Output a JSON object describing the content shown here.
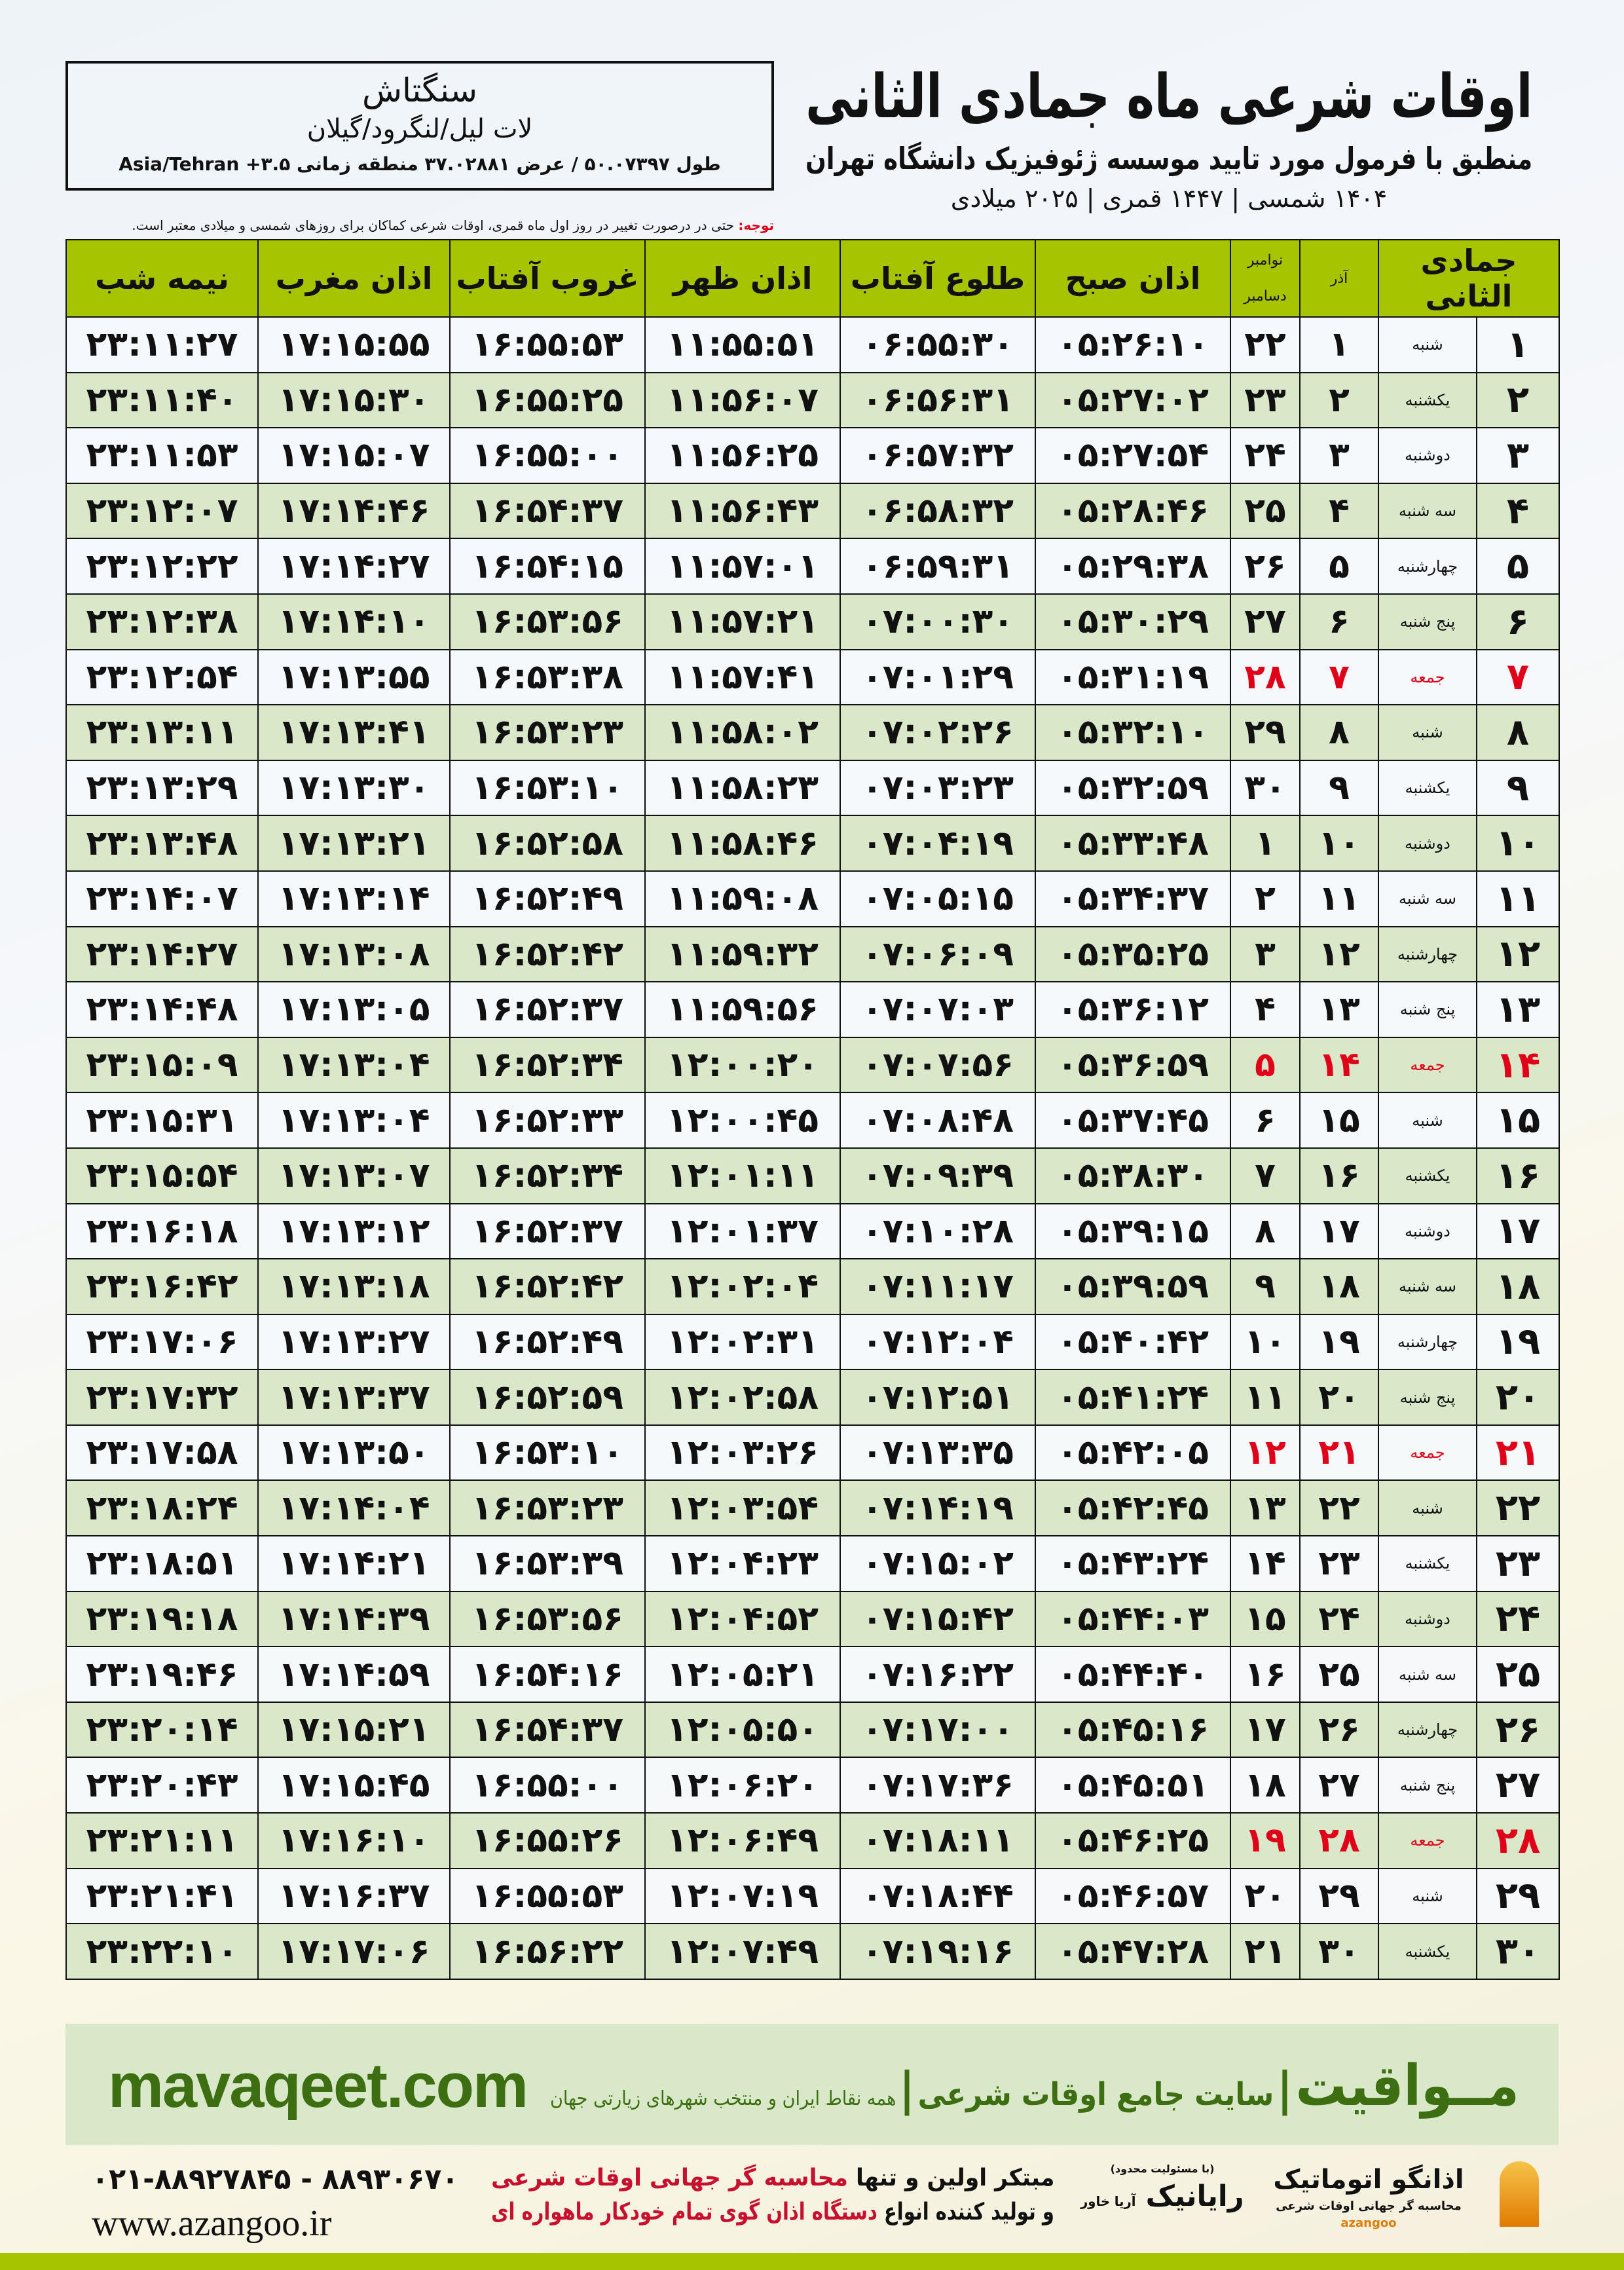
{
  "header": {
    "title": "اوقات شرعی ماه جمادی الثانی",
    "subtitle": "منطبق با فرمول مورد تایید موسسه ژئوفیزیک دانشگاه تهران",
    "dates": "۱۴۰۴ شمسی | ۱۴۴۷ قمری | ۲۰۲۵ میلادی"
  },
  "location": {
    "name": "سنگتاش",
    "region": "لات لیل/لنگرود/گیلان",
    "coords": "طول ۵۰.۰۷۳۹۷ / عرض ۳۷.۰۲۸۸۱ منطقه زمانی ۳.۵+ Asia/Tehran"
  },
  "note": {
    "label": "توجه:",
    "text": " حتی در درصورت تغییر در روز اول ماه قمری، اوقات شرعی کماکان برای روزهای شمسی و میلادی معتبر است."
  },
  "colors": {
    "header": "#a6c400",
    "row_alt": "#d9e8c8",
    "holiday": "#e0001a",
    "brand": "#3d6e12"
  },
  "table": {
    "headers": {
      "hijri": "جمادی الثانی",
      "azar": "آذر",
      "greg_top": "نوامبر",
      "greg_bottom": "دسامبر",
      "fajr": "اذان صبح",
      "sunrise": "طلوع آفتاب",
      "dhuhr": "اذان ظهر",
      "sunset": "غروب آفتاب",
      "maghrib": "اذان مغرب",
      "midnight": "نیمه شب"
    },
    "rows": [
      {
        "day": "۱",
        "weekday": "شنبه",
        "azar": "۱",
        "greg": "۲۲",
        "fajr": "۰۵:۲۶:۱۰",
        "sunrise": "۰۶:۵۵:۳۰",
        "dhuhr": "۱۱:۵۵:۵۱",
        "sunset": "۱۶:۵۵:۵۳",
        "maghrib": "۱۷:۱۵:۵۵",
        "midnight": "۲۳:۱۱:۲۷"
      },
      {
        "day": "۲",
        "weekday": "یکشنبه",
        "azar": "۲",
        "greg": "۲۳",
        "fajr": "۰۵:۲۷:۰۲",
        "sunrise": "۰۶:۵۶:۳۱",
        "dhuhr": "۱۱:۵۶:۰۷",
        "sunset": "۱۶:۵۵:۲۵",
        "maghrib": "۱۷:۱۵:۳۰",
        "midnight": "۲۳:۱۱:۴۰"
      },
      {
        "day": "۳",
        "weekday": "دوشنبه",
        "azar": "۳",
        "greg": "۲۴",
        "fajr": "۰۵:۲۷:۵۴",
        "sunrise": "۰۶:۵۷:۳۲",
        "dhuhr": "۱۱:۵۶:۲۵",
        "sunset": "۱۶:۵۵:۰۰",
        "maghrib": "۱۷:۱۵:۰۷",
        "midnight": "۲۳:۱۱:۵۳"
      },
      {
        "day": "۴",
        "weekday": "سه شنبه",
        "azar": "۴",
        "greg": "۲۵",
        "fajr": "۰۵:۲۸:۴۶",
        "sunrise": "۰۶:۵۸:۳۲",
        "dhuhr": "۱۱:۵۶:۴۳",
        "sunset": "۱۶:۵۴:۳۷",
        "maghrib": "۱۷:۱۴:۴۶",
        "midnight": "۲۳:۱۲:۰۷"
      },
      {
        "day": "۵",
        "weekday": "چهارشنبه",
        "azar": "۵",
        "greg": "۲۶",
        "fajr": "۰۵:۲۹:۳۸",
        "sunrise": "۰۶:۵۹:۳۱",
        "dhuhr": "۱۱:۵۷:۰۱",
        "sunset": "۱۶:۵۴:۱۵",
        "maghrib": "۱۷:۱۴:۲۷",
        "midnight": "۲۳:۱۲:۲۲"
      },
      {
        "day": "۶",
        "weekday": "پنج شنبه",
        "azar": "۶",
        "greg": "۲۷",
        "fajr": "۰۵:۳۰:۲۹",
        "sunrise": "۰۷:۰۰:۳۰",
        "dhuhr": "۱۱:۵۷:۲۱",
        "sunset": "۱۶:۵۳:۵۶",
        "maghrib": "۱۷:۱۴:۱۰",
        "midnight": "۲۳:۱۲:۳۸"
      },
      {
        "day": "۷",
        "weekday": "جمعه",
        "azar": "۷",
        "greg": "۲۸",
        "holiday": true,
        "fajr": "۰۵:۳۱:۱۹",
        "sunrise": "۰۷:۰۱:۲۹",
        "dhuhr": "۱۱:۵۷:۴۱",
        "sunset": "۱۶:۵۳:۳۸",
        "maghrib": "۱۷:۱۳:۵۵",
        "midnight": "۲۳:۱۲:۵۴"
      },
      {
        "day": "۸",
        "weekday": "شنبه",
        "azar": "۸",
        "greg": "۲۹",
        "fajr": "۰۵:۳۲:۱۰",
        "sunrise": "۰۷:۰۲:۲۶",
        "dhuhr": "۱۱:۵۸:۰۲",
        "sunset": "۱۶:۵۳:۲۳",
        "maghrib": "۱۷:۱۳:۴۱",
        "midnight": "۲۳:۱۳:۱۱"
      },
      {
        "day": "۹",
        "weekday": "یکشنبه",
        "azar": "۹",
        "greg": "۳۰",
        "fajr": "۰۵:۳۲:۵۹",
        "sunrise": "۰۷:۰۳:۲۳",
        "dhuhr": "۱۱:۵۸:۲۳",
        "sunset": "۱۶:۵۳:۱۰",
        "maghrib": "۱۷:۱۳:۳۰",
        "midnight": "۲۳:۱۳:۲۹"
      },
      {
        "day": "۱۰",
        "weekday": "دوشنبه",
        "azar": "۱۰",
        "greg": "۱",
        "fajr": "۰۵:۳۳:۴۸",
        "sunrise": "۰۷:۰۴:۱۹",
        "dhuhr": "۱۱:۵۸:۴۶",
        "sunset": "۱۶:۵۲:۵۸",
        "maghrib": "۱۷:۱۳:۲۱",
        "midnight": "۲۳:۱۳:۴۸"
      },
      {
        "day": "۱۱",
        "weekday": "سه شنبه",
        "azar": "۱۱",
        "greg": "۲",
        "fajr": "۰۵:۳۴:۳۷",
        "sunrise": "۰۷:۰۵:۱۵",
        "dhuhr": "۱۱:۵۹:۰۸",
        "sunset": "۱۶:۵۲:۴۹",
        "maghrib": "۱۷:۱۳:۱۴",
        "midnight": "۲۳:۱۴:۰۷"
      },
      {
        "day": "۱۲",
        "weekday": "چهارشنبه",
        "azar": "۱۲",
        "greg": "۳",
        "fajr": "۰۵:۳۵:۲۵",
        "sunrise": "۰۷:۰۶:۰۹",
        "dhuhr": "۱۱:۵۹:۳۲",
        "sunset": "۱۶:۵۲:۴۲",
        "maghrib": "۱۷:۱۳:۰۸",
        "midnight": "۲۳:۱۴:۲۷"
      },
      {
        "day": "۱۳",
        "weekday": "پنج شنبه",
        "azar": "۱۳",
        "greg": "۴",
        "fajr": "۰۵:۳۶:۱۲",
        "sunrise": "۰۷:۰۷:۰۳",
        "dhuhr": "۱۱:۵۹:۵۶",
        "sunset": "۱۶:۵۲:۳۷",
        "maghrib": "۱۷:۱۳:۰۵",
        "midnight": "۲۳:۱۴:۴۸"
      },
      {
        "day": "۱۴",
        "weekday": "جمعه",
        "azar": "۱۴",
        "greg": "۵",
        "holiday": true,
        "fajr": "۰۵:۳۶:۵۹",
        "sunrise": "۰۷:۰۷:۵۶",
        "dhuhr": "۱۲:۰۰:۲۰",
        "sunset": "۱۶:۵۲:۳۴",
        "maghrib": "۱۷:۱۳:۰۴",
        "midnight": "۲۳:۱۵:۰۹"
      },
      {
        "day": "۱۵",
        "weekday": "شنبه",
        "azar": "۱۵",
        "greg": "۶",
        "fajr": "۰۵:۳۷:۴۵",
        "sunrise": "۰۷:۰۸:۴۸",
        "dhuhr": "۱۲:۰۰:۴۵",
        "sunset": "۱۶:۵۲:۳۳",
        "maghrib": "۱۷:۱۳:۰۴",
        "midnight": "۲۳:۱۵:۳۱"
      },
      {
        "day": "۱۶",
        "weekday": "یکشنبه",
        "azar": "۱۶",
        "greg": "۷",
        "fajr": "۰۵:۳۸:۳۰",
        "sunrise": "۰۷:۰۹:۳۹",
        "dhuhr": "۱۲:۰۱:۱۱",
        "sunset": "۱۶:۵۲:۳۴",
        "maghrib": "۱۷:۱۳:۰۷",
        "midnight": "۲۳:۱۵:۵۴"
      },
      {
        "day": "۱۷",
        "weekday": "دوشنبه",
        "azar": "۱۷",
        "greg": "۸",
        "fajr": "۰۵:۳۹:۱۵",
        "sunrise": "۰۷:۱۰:۲۸",
        "dhuhr": "۱۲:۰۱:۳۷",
        "sunset": "۱۶:۵۲:۳۷",
        "maghrib": "۱۷:۱۳:۱۲",
        "midnight": "۲۳:۱۶:۱۸"
      },
      {
        "day": "۱۸",
        "weekday": "سه شنبه",
        "azar": "۱۸",
        "greg": "۹",
        "fajr": "۰۵:۳۹:۵۹",
        "sunrise": "۰۷:۱۱:۱۷",
        "dhuhr": "۱۲:۰۲:۰۴",
        "sunset": "۱۶:۵۲:۴۲",
        "maghrib": "۱۷:۱۳:۱۸",
        "midnight": "۲۳:۱۶:۴۲"
      },
      {
        "day": "۱۹",
        "weekday": "چهارشنبه",
        "azar": "۱۹",
        "greg": "۱۰",
        "fajr": "۰۵:۴۰:۴۲",
        "sunrise": "۰۷:۱۲:۰۴",
        "dhuhr": "۱۲:۰۲:۳۱",
        "sunset": "۱۶:۵۲:۴۹",
        "maghrib": "۱۷:۱۳:۲۷",
        "midnight": "۲۳:۱۷:۰۶"
      },
      {
        "day": "۲۰",
        "weekday": "پنج شنبه",
        "azar": "۲۰",
        "greg": "۱۱",
        "fajr": "۰۵:۴۱:۲۴",
        "sunrise": "۰۷:۱۲:۵۱",
        "dhuhr": "۱۲:۰۲:۵۸",
        "sunset": "۱۶:۵۲:۵۹",
        "maghrib": "۱۷:۱۳:۳۷",
        "midnight": "۲۳:۱۷:۳۲"
      },
      {
        "day": "۲۱",
        "weekday": "جمعه",
        "azar": "۲۱",
        "greg": "۱۲",
        "holiday": true,
        "fajr": "۰۵:۴۲:۰۵",
        "sunrise": "۰۷:۱۳:۳۵",
        "dhuhr": "۱۲:۰۳:۲۶",
        "sunset": "۱۶:۵۳:۱۰",
        "maghrib": "۱۷:۱۳:۵۰",
        "midnight": "۲۳:۱۷:۵۸"
      },
      {
        "day": "۲۲",
        "weekday": "شنبه",
        "azar": "۲۲",
        "greg": "۱۳",
        "fajr": "۰۵:۴۲:۴۵",
        "sunrise": "۰۷:۱۴:۱۹",
        "dhuhr": "۱۲:۰۳:۵۴",
        "sunset": "۱۶:۵۳:۲۳",
        "maghrib": "۱۷:۱۴:۰۴",
        "midnight": "۲۳:۱۸:۲۴"
      },
      {
        "day": "۲۳",
        "weekday": "یکشنبه",
        "azar": "۲۳",
        "greg": "۱۴",
        "fajr": "۰۵:۴۳:۲۴",
        "sunrise": "۰۷:۱۵:۰۲",
        "dhuhr": "۱۲:۰۴:۲۳",
        "sunset": "۱۶:۵۳:۳۹",
        "maghrib": "۱۷:۱۴:۲۱",
        "midnight": "۲۳:۱۸:۵۱"
      },
      {
        "day": "۲۴",
        "weekday": "دوشنبه",
        "azar": "۲۴",
        "greg": "۱۵",
        "fajr": "۰۵:۴۴:۰۳",
        "sunrise": "۰۷:۱۵:۴۲",
        "dhuhr": "۱۲:۰۴:۵۲",
        "sunset": "۱۶:۵۳:۵۶",
        "maghrib": "۱۷:۱۴:۳۹",
        "midnight": "۲۳:۱۹:۱۸"
      },
      {
        "day": "۲۵",
        "weekday": "سه شنبه",
        "azar": "۲۵",
        "greg": "۱۶",
        "fajr": "۰۵:۴۴:۴۰",
        "sunrise": "۰۷:۱۶:۲۲",
        "dhuhr": "۱۲:۰۵:۲۱",
        "sunset": "۱۶:۵۴:۱۶",
        "maghrib": "۱۷:۱۴:۵۹",
        "midnight": "۲۳:۱۹:۴۶"
      },
      {
        "day": "۲۶",
        "weekday": "چهارشنبه",
        "azar": "۲۶",
        "greg": "۱۷",
        "fajr": "۰۵:۴۵:۱۶",
        "sunrise": "۰۷:۱۷:۰۰",
        "dhuhr": "۱۲:۰۵:۵۰",
        "sunset": "۱۶:۵۴:۳۷",
        "maghrib": "۱۷:۱۵:۲۱",
        "midnight": "۲۳:۲۰:۱۴"
      },
      {
        "day": "۲۷",
        "weekday": "پنج شنبه",
        "azar": "۲۷",
        "greg": "۱۸",
        "fajr": "۰۵:۴۵:۵۱",
        "sunrise": "۰۷:۱۷:۳۶",
        "dhuhr": "۱۲:۰۶:۲۰",
        "sunset": "۱۶:۵۵:۰۰",
        "maghrib": "۱۷:۱۵:۴۵",
        "midnight": "۲۳:۲۰:۴۳"
      },
      {
        "day": "۲۸",
        "weekday": "جمعه",
        "azar": "۲۸",
        "greg": "۱۹",
        "holiday": true,
        "fajr": "۰۵:۴۶:۲۵",
        "sunrise": "۰۷:۱۸:۱۱",
        "dhuhr": "۱۲:۰۶:۴۹",
        "sunset": "۱۶:۵۵:۲۶",
        "maghrib": "۱۷:۱۶:۱۰",
        "midnight": "۲۳:۲۱:۱۱"
      },
      {
        "day": "۲۹",
        "weekday": "شنبه",
        "azar": "۲۹",
        "greg": "۲۰",
        "fajr": "۰۵:۴۶:۵۷",
        "sunrise": "۰۷:۱۸:۴۴",
        "dhuhr": "۱۲:۰۷:۱۹",
        "sunset": "۱۶:۵۵:۵۳",
        "maghrib": "۱۷:۱۶:۳۷",
        "midnight": "۲۳:۲۱:۴۱"
      },
      {
        "day": "۳۰",
        "weekday": "یکشنبه",
        "azar": "۳۰",
        "greg": "۲۱",
        "fajr": "۰۵:۴۷:۲۸",
        "sunrise": "۰۷:۱۹:۱۶",
        "dhuhr": "۱۲:۰۷:۴۹",
        "sunset": "۱۶:۵۶:۲۲",
        "maghrib": "۱۷:۱۷:۰۶",
        "midnight": "۲۳:۲۲:۱۰"
      }
    ]
  },
  "footer": {
    "brand": "مــواقیت",
    "separator": "|",
    "tagline": "سایت جامع اوقات شرعی",
    "sep2": "|",
    "sub": "همه نقاط ایران و منتخب شهرهای زیارتی جهان",
    "site": "mavaqeet.com",
    "phones": "۰۲۱-۸۸۹۲۷۸۴۵ - ۸۸۹۳۰۶۷۰",
    "www": "www.azangoo.ir",
    "ad_line1_a": "مبتکر اولین و تنها ",
    "ad_line1_b": "محاسبه گر جهانی اوقات شرعی",
    "ad_line2_a": "و تولید کننده انواع ",
    "ad_line2_b": "دستگاه اذان گوی تمام خودکار ماهواره ای",
    "logo_rayanik": "رایانیک",
    "logo_rayanik_sub": "(با مسئولیت محدود)",
    "logo_rayanik_side": "آریا خاور",
    "logo_azangoo": "اذانگو اتوماتیک",
    "logo_azangoo_sub": "محاسبه گر جهانی اوقات شرعی",
    "logo_azangoo_en": "azangoo"
  }
}
